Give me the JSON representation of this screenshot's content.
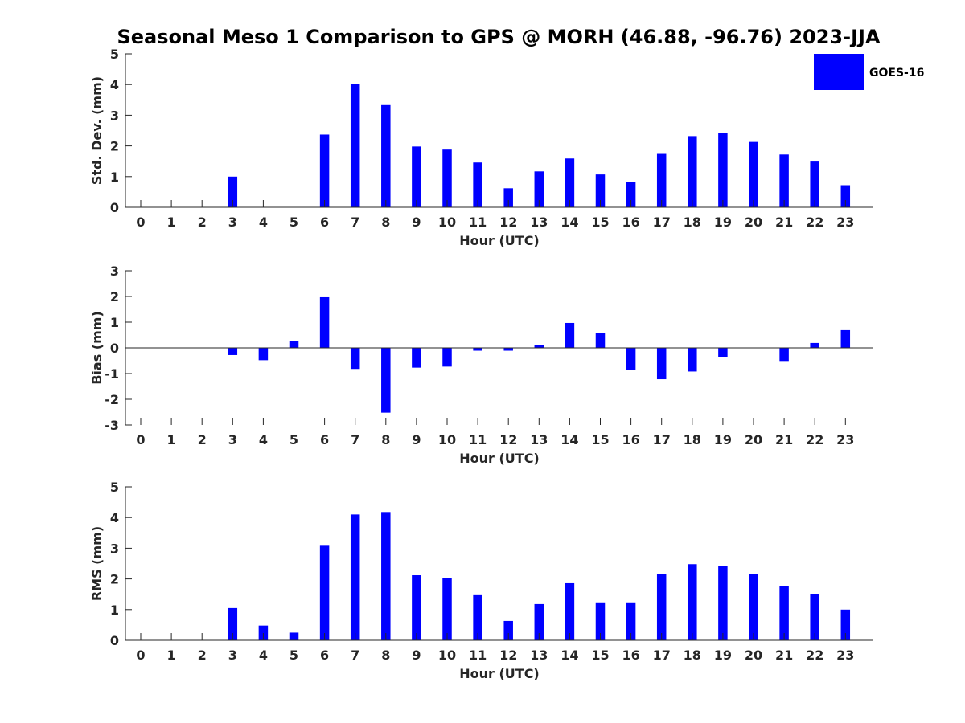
{
  "chart_data": {
    "type": "bar",
    "title": "Seasonal Meso 1 Comparison to GPS @ MORH (46.88, -96.76) 2023-JJA",
    "legend": {
      "label": "GOES-16",
      "placement": "top-right",
      "color": "#0000ff"
    },
    "bar_color": "#0000ff",
    "categories": [
      "0",
      "1",
      "2",
      "3",
      "4",
      "5",
      "6",
      "7",
      "8",
      "9",
      "10",
      "11",
      "12",
      "13",
      "14",
      "15",
      "16",
      "17",
      "18",
      "19",
      "20",
      "21",
      "22",
      "23"
    ],
    "panels": [
      {
        "name": "std-dev",
        "ylabel": "Std. Dev. (mm)",
        "xlabel": "Hour (UTC)",
        "ylim": [
          0,
          5
        ],
        "yticks": [
          "0",
          "1",
          "2",
          "3",
          "4",
          "5"
        ],
        "values": [
          null,
          null,
          null,
          1.0,
          null,
          null,
          2.37,
          4.02,
          3.33,
          1.98,
          1.88,
          1.46,
          0.62,
          1.17,
          1.59,
          1.07,
          0.83,
          1.74,
          2.32,
          2.41,
          2.13,
          1.72,
          1.49,
          0.72
        ]
      },
      {
        "name": "bias",
        "ylabel": "Bias (mm)",
        "xlabel": "Hour (UTC)",
        "ylim": [
          -3,
          3
        ],
        "yticks": [
          "-3",
          "-2",
          "-1",
          "0",
          "1",
          "2",
          "3"
        ],
        "values": [
          null,
          null,
          null,
          -0.28,
          -0.48,
          0.25,
          1.97,
          -0.82,
          -2.52,
          -0.77,
          -0.73,
          -0.11,
          -0.11,
          0.12,
          0.97,
          0.57,
          -0.85,
          -1.22,
          -0.92,
          -0.35,
          null,
          -0.51,
          0.19,
          0.69
        ]
      },
      {
        "name": "rms",
        "ylabel": "RMS (mm)",
        "xlabel": "Hour (UTC)",
        "ylim": [
          0,
          5
        ],
        "yticks": [
          "0",
          "1",
          "2",
          "3",
          "4",
          "5"
        ],
        "values": [
          null,
          null,
          null,
          1.05,
          0.48,
          0.25,
          3.08,
          4.1,
          4.18,
          2.12,
          2.02,
          1.47,
          0.63,
          1.18,
          1.86,
          1.21,
          1.21,
          2.15,
          2.48,
          2.41,
          2.15,
          1.78,
          1.5,
          1.0
        ]
      }
    ]
  }
}
